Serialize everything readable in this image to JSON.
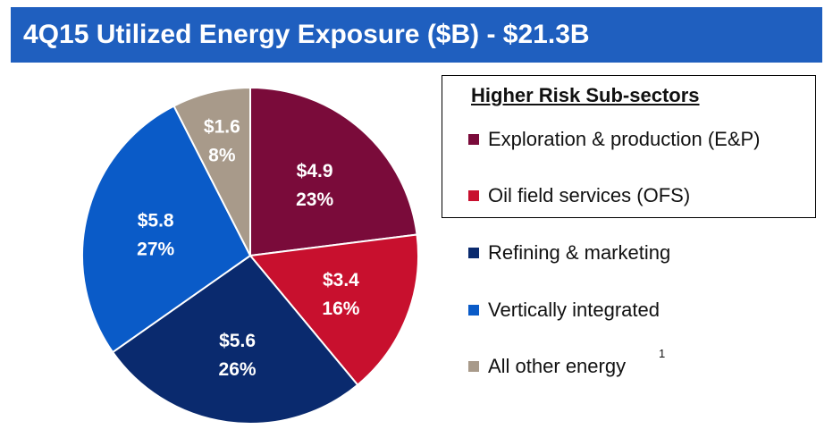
{
  "title": "4Q15 Utilized Energy Exposure ($B) - $21.3B",
  "legend": {
    "heading": "Higher Risk Sub-sectors",
    "footnote_marker": "1"
  },
  "chart_data": {
    "type": "pie",
    "title": "4Q15 Utilized Energy Exposure ($B) - $21.3B",
    "total": 21.3,
    "units": "$B",
    "slices": [
      {
        "name": "Exploration & production (E&P)",
        "value": 4.9,
        "value_label": "$4.9",
        "percent_label": "23%",
        "color": "#7a0b3a",
        "higher_risk": true
      },
      {
        "name": "Oil field services (OFS)",
        "value": 3.4,
        "value_label": "$3.4",
        "percent_label": "16%",
        "color": "#c8102e",
        "higher_risk": true
      },
      {
        "name": "Refining & marketing",
        "value": 5.6,
        "value_label": "$5.6",
        "percent_label": "26%",
        "color": "#0a2a6e",
        "higher_risk": false
      },
      {
        "name": "Vertically integrated",
        "value": 5.8,
        "value_label": "$5.8",
        "percent_label": "27%",
        "color": "#0a5bc8",
        "higher_risk": false
      },
      {
        "name": "All other energy",
        "value": 1.6,
        "value_label": "$1.6",
        "percent_label": "8%",
        "color": "#a89a8a",
        "higher_risk": false
      }
    ]
  }
}
